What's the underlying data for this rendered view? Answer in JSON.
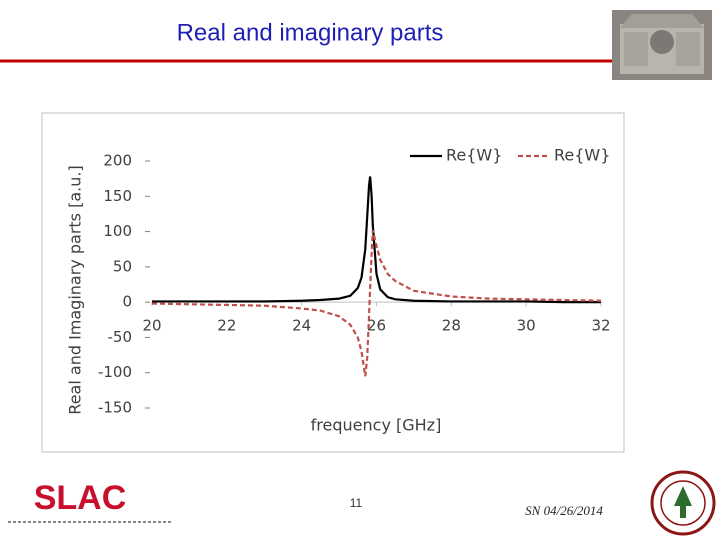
{
  "slide": {
    "title": "Real and imaginary parts",
    "page_number": "11",
    "footer_date": "SN 04/26/2014",
    "logo": "SLAC"
  },
  "chart_data": {
    "type": "line",
    "y_label": "Real and Imaginary parts [a.u.]",
    "x_label": "frequency [GHz]",
    "x": [
      20,
      21,
      22,
      23,
      24,
      24.5,
      25,
      25.3,
      25.5,
      25.6,
      25.7,
      25.75,
      25.8,
      25.83,
      25.87,
      25.9,
      26,
      26.1,
      26.3,
      26.5,
      27,
      28,
      29,
      30,
      31,
      32
    ],
    "series": [
      {
        "name": "Re{W}",
        "color": "#000000",
        "dash": false,
        "values": [
          1,
          1,
          1,
          1,
          2,
          3,
          5,
          9,
          20,
          35,
          75,
          120,
          165,
          178,
          150,
          110,
          40,
          18,
          7,
          4,
          2,
          1,
          1,
          1,
          0,
          0
        ]
      },
      {
        "name": "Re{W}",
        "color": "#c0504d",
        "dash": true,
        "values": [
          -2,
          -3,
          -4,
          -5,
          -9,
          -12,
          -20,
          -32,
          -50,
          -70,
          -105,
          -80,
          -20,
          20,
          70,
          102,
          80,
          60,
          40,
          30,
          16,
          8,
          5,
          4,
          3,
          2
        ]
      }
    ],
    "xlim": [
      20,
      32
    ],
    "xticks": [
      20,
      22,
      24,
      26,
      28,
      30,
      32
    ],
    "ylim": [
      -150,
      200
    ],
    "yticks": [
      -150,
      -100,
      -50,
      0,
      50,
      100,
      150,
      200
    ],
    "grid": false,
    "legend": "top-right"
  }
}
